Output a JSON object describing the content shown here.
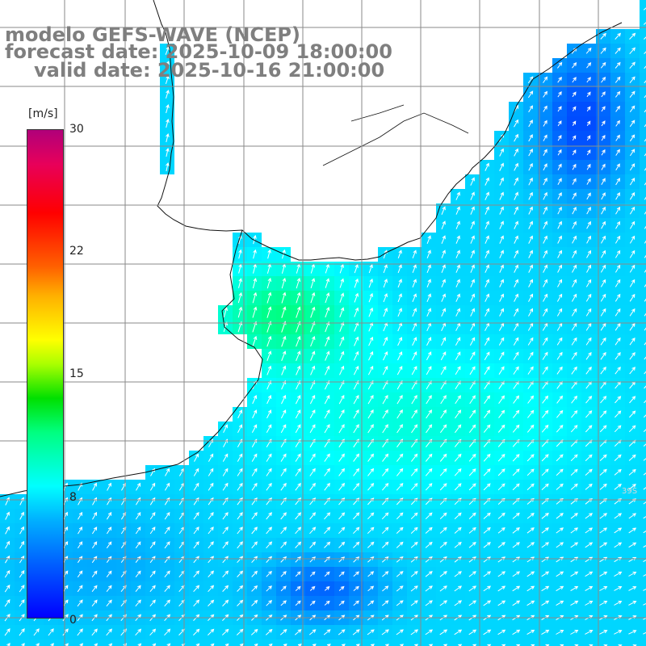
{
  "title": {
    "line1": "modelo GEFS-WAVE (NCEP)",
    "line2": "forecast date: 2025-10-09 18:00:00",
    "line3": "valid date: 2025-10-16 21:00:00"
  },
  "colorbar": {
    "unit": "[m/s]",
    "ticks": [
      "30",
      "22",
      "15",
      "8",
      "0"
    ],
    "tick_values": [
      30,
      22,
      15,
      8,
      0
    ],
    "range": [
      0,
      30
    ],
    "colors": [
      "#0000ff",
      "#00b0ff",
      "#00ffff",
      "#00e000",
      "#ffff00",
      "#ff6000",
      "#ff0000",
      "#b0007a"
    ]
  },
  "map": {
    "variable": "wind speed and direction",
    "land_color": "#ffffff",
    "grid_color": "#8a8a8a",
    "arrow_color": "#ffffff",
    "grid_labels_right": [
      "39S"
    ]
  }
}
